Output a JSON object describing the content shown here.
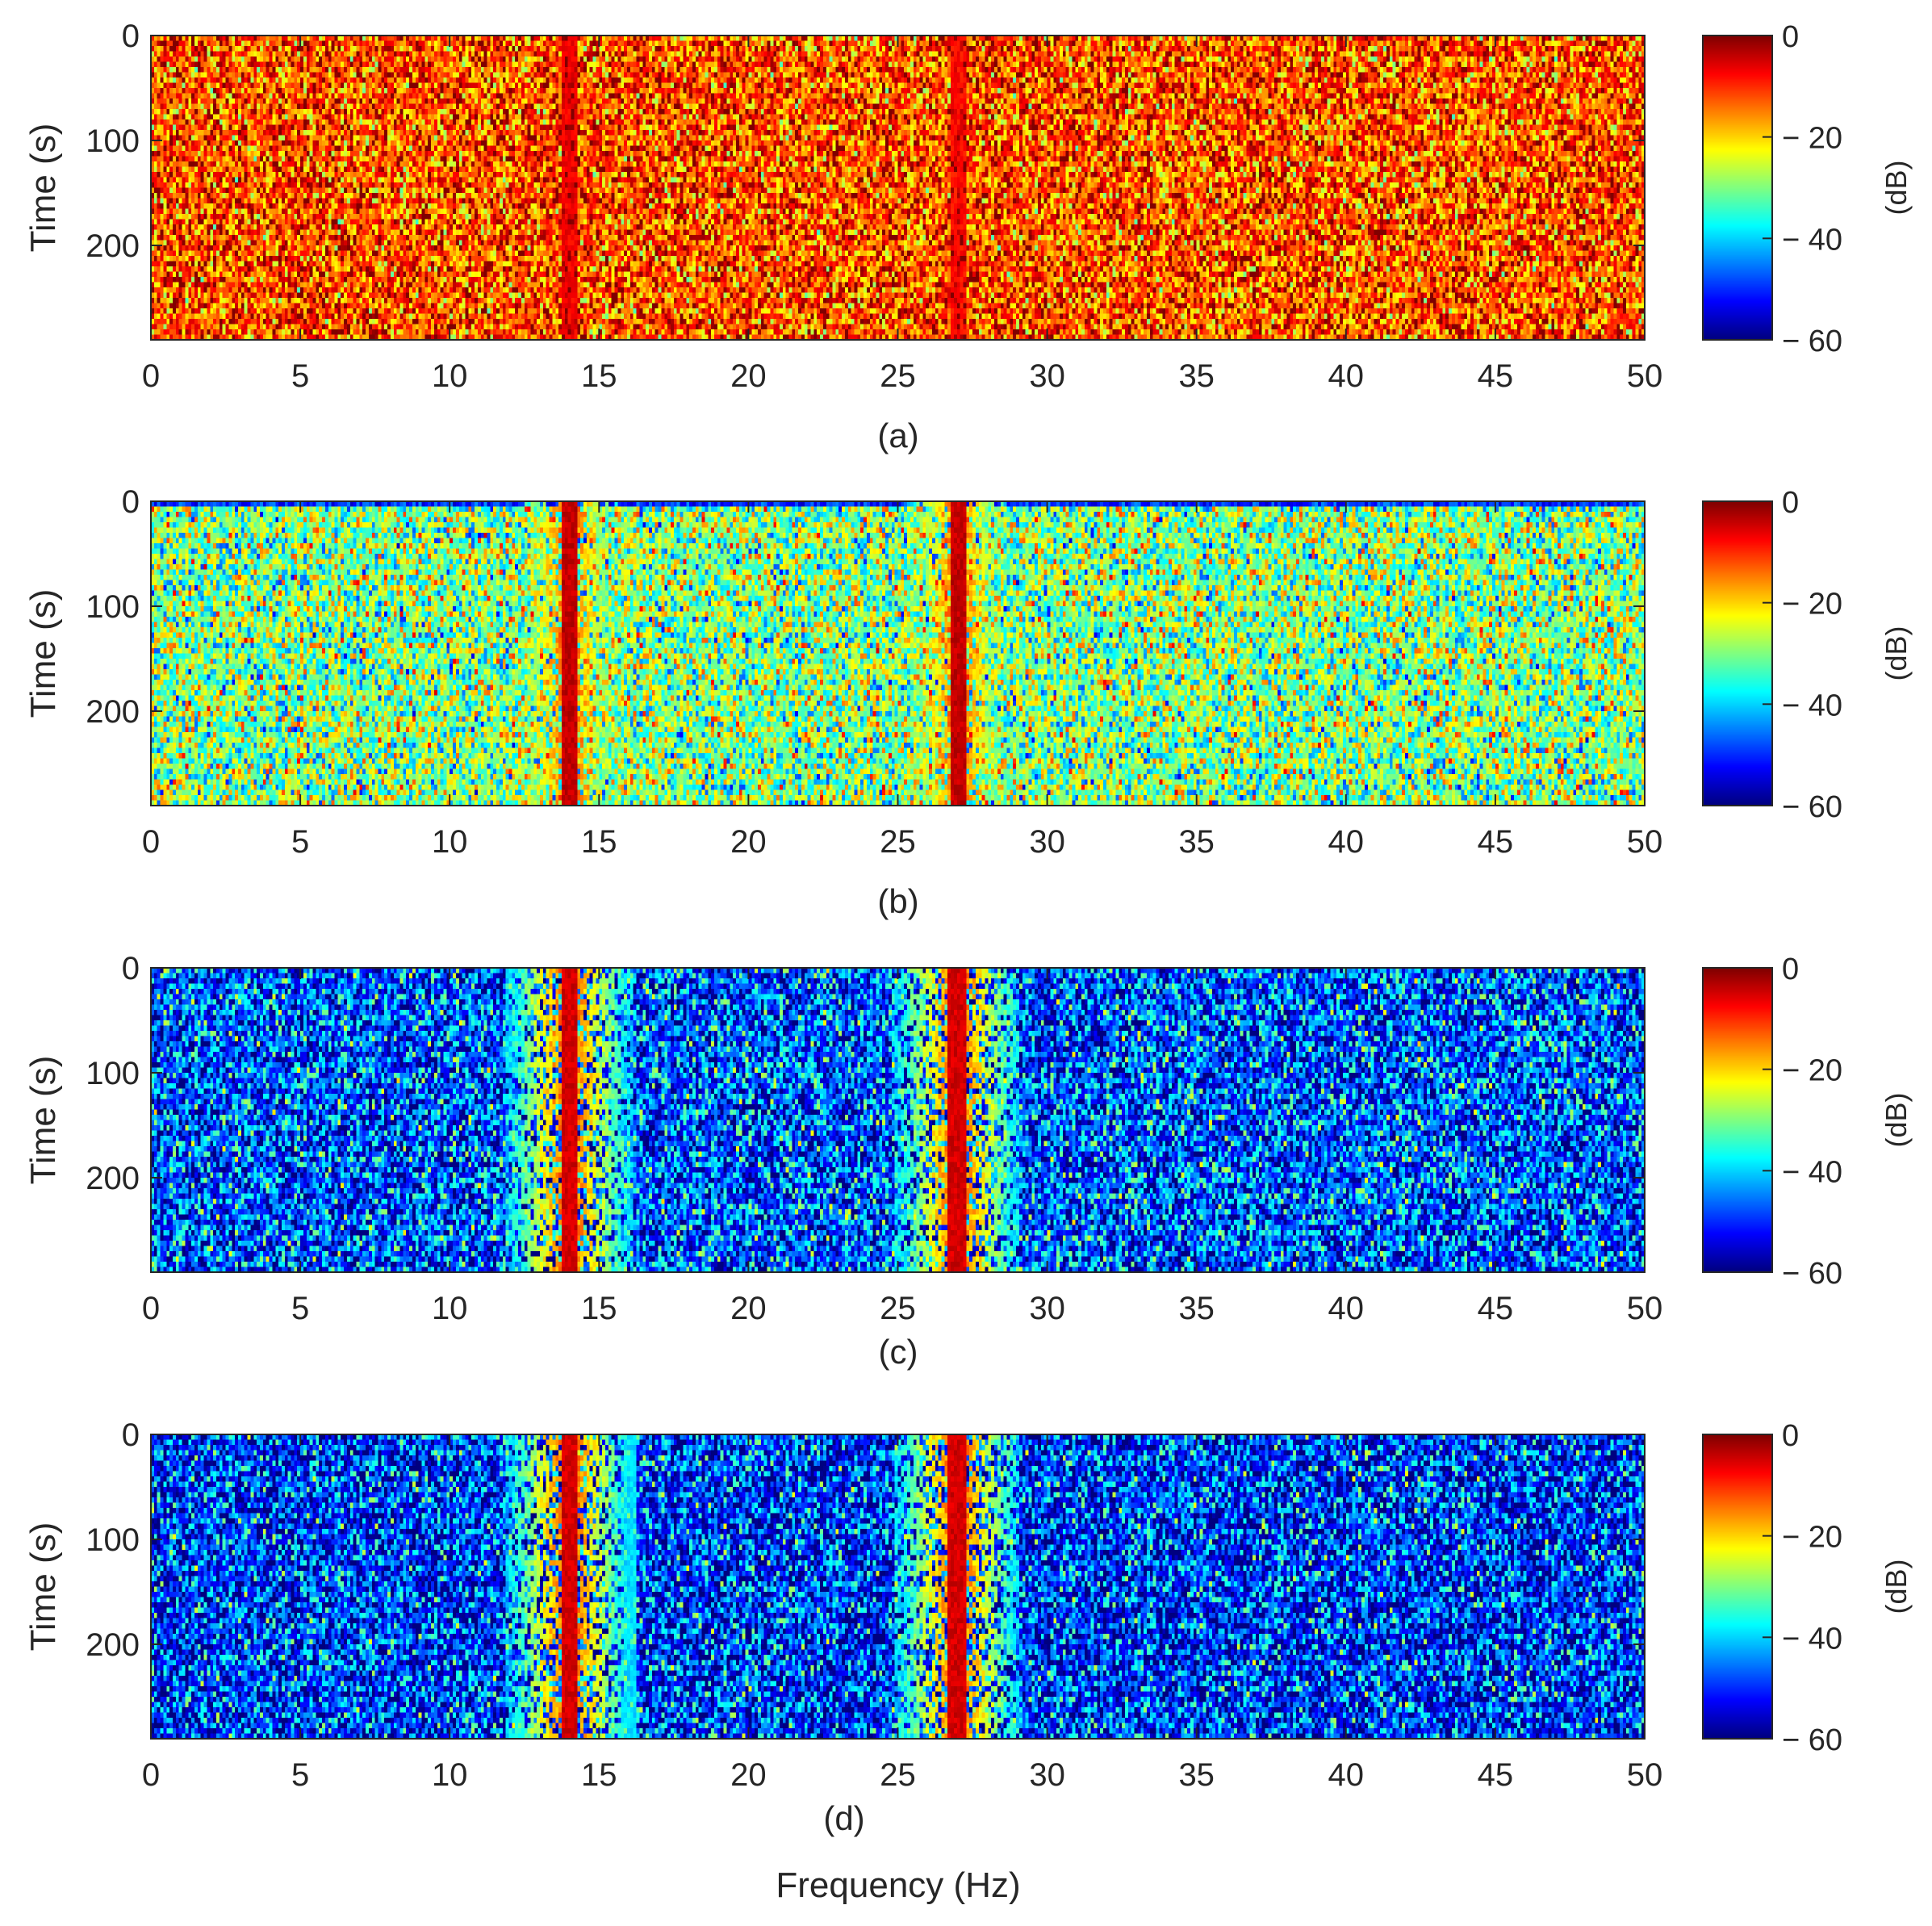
{
  "figure": {
    "shared_xlabel": "Frequency (Hz)"
  },
  "chart_data": [
    {
      "type": "heatmap",
      "panel_label": "(a)",
      "xlabel": "",
      "ylabel": "Time (s)",
      "x_ticks": [
        0,
        5,
        10,
        15,
        20,
        25,
        30,
        35,
        40,
        45,
        50
      ],
      "y_ticks": [
        0,
        100,
        200
      ],
      "xlim": [
        0,
        50
      ],
      "ylim": [
        0,
        290
      ],
      "y_reversed": true,
      "colorbar": {
        "label": "(dB)",
        "ticks": [
          0,
          -20,
          -40,
          -60
        ],
        "tick_labels": [
          "0",
          "− 20",
          "− 40",
          "− 60"
        ],
        "range": [
          -60,
          0
        ],
        "colormap": "jet"
      },
      "background_level_db": -12,
      "noise_spread_db": 8,
      "tonal_lines": [
        {
          "frequency_hz": 14.0,
          "level_db": -5,
          "width_hz": 0.12
        },
        {
          "frequency_hz": 27.0,
          "level_db": -6,
          "width_hz": 0.12
        }
      ]
    },
    {
      "type": "heatmap",
      "panel_label": "(b)",
      "xlabel": "",
      "ylabel": "Time (s)",
      "x_ticks": [
        0,
        5,
        10,
        15,
        20,
        25,
        30,
        35,
        40,
        45,
        50
      ],
      "y_ticks": [
        0,
        100,
        200
      ],
      "xlim": [
        0,
        50
      ],
      "ylim": [
        0,
        290
      ],
      "y_reversed": true,
      "colorbar": {
        "label": "(dB)",
        "ticks": [
          0,
          -20,
          -40,
          -60
        ],
        "tick_labels": [
          "0",
          "− 20",
          "− 40",
          "− 60"
        ],
        "range": [
          -60,
          0
        ],
        "colormap": "jet"
      },
      "background_level_db": -30,
      "noise_spread_db": 9,
      "first_row_level_db": -50,
      "tonal_lines": [
        {
          "frequency_hz": 14.0,
          "level_db": -2,
          "width_hz": 0.12
        },
        {
          "frequency_hz": 27.0,
          "level_db": -2,
          "width_hz": 0.12
        }
      ]
    },
    {
      "type": "heatmap",
      "panel_label": "(c)",
      "xlabel": "",
      "ylabel": "Time (s)",
      "x_ticks": [
        0,
        5,
        10,
        15,
        20,
        25,
        30,
        35,
        40,
        45,
        50
      ],
      "y_ticks": [
        0,
        100,
        200
      ],
      "xlim": [
        0,
        50
      ],
      "ylim": [
        0,
        290
      ],
      "y_reversed": true,
      "colorbar": {
        "label": "(dB)",
        "ticks": [
          0,
          -20,
          -40,
          -60
        ],
        "tick_labels": [
          "0",
          "− 20",
          "− 40",
          "− 60"
        ],
        "range": [
          -60,
          0
        ],
        "colormap": "jet"
      },
      "background_level_db": -48,
      "noise_spread_db": 10,
      "tonal_lines": [
        {
          "frequency_hz": 14.0,
          "level_db": -3,
          "width_hz": 0.15
        },
        {
          "frequency_hz": 27.0,
          "level_db": -3,
          "width_hz": 0.15
        }
      ]
    },
    {
      "type": "heatmap",
      "panel_label": "(d)",
      "xlabel": "Frequency (Hz)",
      "ylabel": "Time (s)",
      "x_ticks": [
        0,
        5,
        10,
        15,
        20,
        25,
        30,
        35,
        40,
        45,
        50
      ],
      "y_ticks": [
        0,
        100,
        200
      ],
      "xlim": [
        0,
        50
      ],
      "ylim": [
        0,
        290
      ],
      "y_reversed": true,
      "colorbar": {
        "label": "(dB)",
        "ticks": [
          0,
          -20,
          -40,
          -60
        ],
        "tick_labels": [
          "0",
          "− 20",
          "− 40",
          "− 60"
        ],
        "range": [
          -60,
          0
        ],
        "colormap": "jet"
      },
      "background_level_db": -50,
      "noise_spread_db": 10,
      "tonal_lines": [
        {
          "frequency_hz": 14.0,
          "level_db": -3,
          "width_hz": 0.15
        },
        {
          "frequency_hz": 27.0,
          "level_db": -3,
          "width_hz": 0.15
        },
        {
          "frequency_hz": 16.0,
          "level_db": -38,
          "width_hz": 0.1
        }
      ]
    }
  ]
}
